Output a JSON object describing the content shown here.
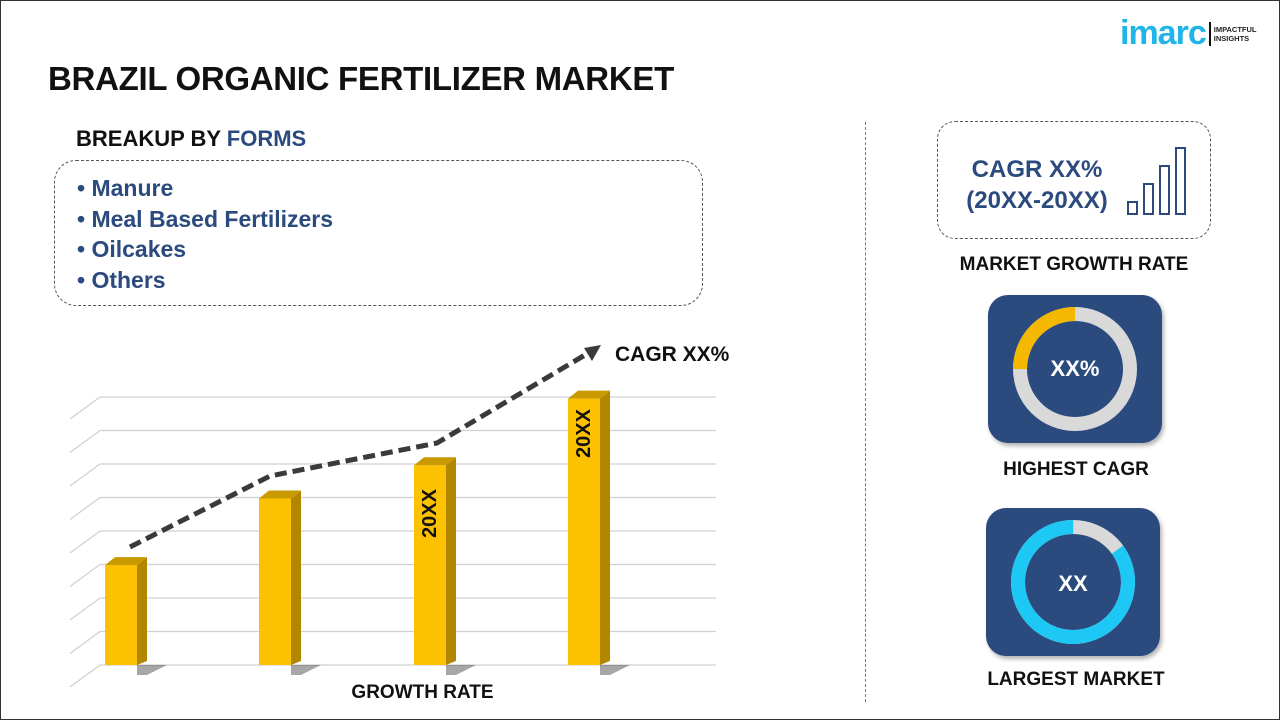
{
  "title": "BRAZIL ORGANIC FERTILIZER MARKET",
  "logo": {
    "word": "imarc",
    "tagline_1": "IMPACTFUL",
    "tagline_2": "INSIGHTS"
  },
  "breakup": {
    "prefix": "BREAKUP BY ",
    "highlight": "FORMS",
    "items": [
      "• Manure",
      "• Meal Based Fertilizers",
      "• Oilcakes",
      "• Others"
    ]
  },
  "growth_card": {
    "line1": "CAGR XX%",
    "line2": "(20XX-20XX)",
    "label": "MARKET GROWTH RATE",
    "icon": "bar-growth-icon"
  },
  "highest_cagr": {
    "value": "XX%",
    "label": "HIGHEST CAGR",
    "fill_fraction": 0.25,
    "accent": "#f5b800",
    "track": "#d9d9d9"
  },
  "largest_market": {
    "value": "XX",
    "label": "LARGEST MARKET",
    "fill_fraction": 0.85,
    "accent": "#1ec8f5",
    "track": "#d9d9d9"
  },
  "colors": {
    "primary": "#2b4a7e",
    "bar": "#fcc100",
    "bar_side": "#b38600",
    "logo": "#1fb5e8"
  },
  "chart_data": {
    "type": "bar",
    "categories": [
      "",
      "",
      "",
      ""
    ],
    "values": [
      3,
      5,
      6,
      8
    ],
    "bar_labels": [
      "",
      "",
      "20XX",
      "20XX"
    ],
    "ylim": [
      0,
      8.5
    ],
    "grid": true,
    "xlabel": "GROWTH RATE",
    "trend_annotation": "CAGR XX%"
  }
}
